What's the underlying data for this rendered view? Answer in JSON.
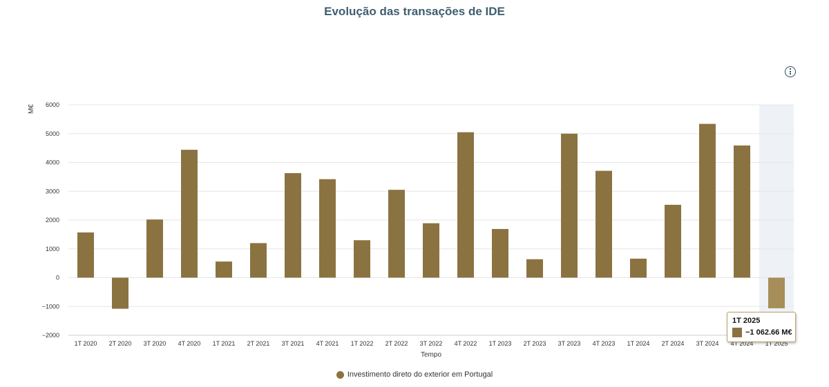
{
  "chart_data": {
    "type": "bar",
    "title": "Evolução das transações de IDE",
    "xlabel": "Tempo",
    "ylabel": "M€",
    "ylim": [
      -2000,
      6000
    ],
    "yticks": [
      "6000",
      "5000",
      "4000",
      "3000",
      "2000",
      "1000",
      "0",
      "−1000",
      "−2000"
    ],
    "categories": [
      "1T 2020",
      "2T 2020",
      "3T 2020",
      "4T 2020",
      "1T 2021",
      "2T 2021",
      "3T 2021",
      "4T 2021",
      "1T 2022",
      "2T 2022",
      "3T 2022",
      "4T 2022",
      "1T 2023",
      "2T 2023",
      "3T 2023",
      "4T 2023",
      "1T 2024",
      "2T 2024",
      "3T 2024",
      "4T 2024",
      "1T 2025"
    ],
    "series": [
      {
        "name": "Investimento direto do exterior em Portugal",
        "color": "#8b7341",
        "values": [
          1570,
          -1080,
          2020,
          4440,
          560,
          1200,
          3630,
          3420,
          1300,
          3050,
          1890,
          5050,
          1690,
          640,
          5000,
          3710,
          660,
          2530,
          5340,
          4590,
          -1062.66
        ]
      }
    ],
    "grid": true,
    "legend": "bottom-center",
    "highlight_color": "#a78d58",
    "highlight_band_color": "#eef2f7"
  },
  "tooltip": {
    "title": "1T 2025",
    "value": "−1 062.66 M€"
  },
  "info_button": {
    "icon": "info-icon"
  }
}
